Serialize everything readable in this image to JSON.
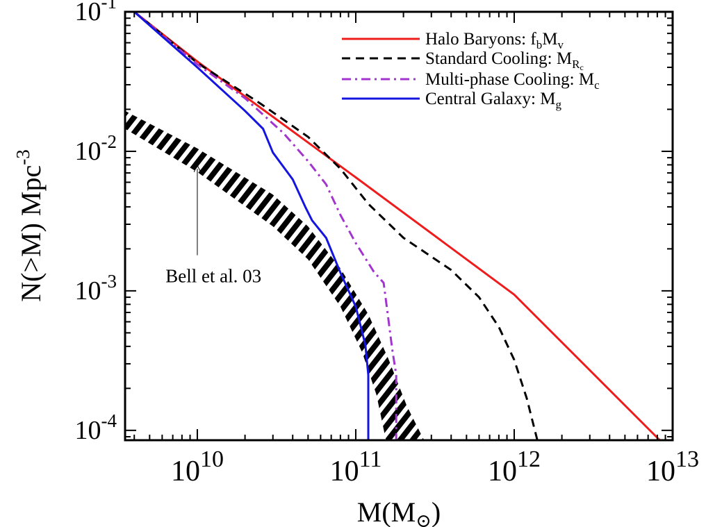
{
  "chart_data": {
    "type": "line",
    "xlabel": "M(M",
    "xlabel_sub": "⊙",
    "xlabel_close": ")",
    "ylabel": "N(>M) Mpc",
    "ylabel_sup": "-3",
    "x_scale": "log",
    "y_scale": "log",
    "xlim": [
      3500000000.0,
      10000000000000.0
    ],
    "ylim": [
      8.5e-05,
      0.1
    ],
    "x_ticks": [
      {
        "base": "10",
        "exp": "10",
        "value": 10000000000.0
      },
      {
        "base": "10",
        "exp": "11",
        "value": 100000000000.0
      },
      {
        "base": "10",
        "exp": "12",
        "value": 1000000000000.0
      },
      {
        "base": "10",
        "exp": "13",
        "value": 10000000000000.0
      }
    ],
    "y_ticks": [
      {
        "base": "10",
        "exp": "-1",
        "value": 0.1
      },
      {
        "base": "10",
        "exp": "-2",
        "value": 0.01
      },
      {
        "base": "10",
        "exp": "-3",
        "value": 0.001
      },
      {
        "base": "10",
        "exp": "-4",
        "value": 0.0001
      }
    ],
    "grid": false,
    "legend_position": "top-right",
    "series": [
      {
        "name": "Halo Baryons: f",
        "name_sub": "b",
        "name_mid": "M",
        "name_sub2": "v",
        "color": "#ee1c1c",
        "dash": "solid",
        "points": [
          [
            4000000000.0,
            0.1
          ],
          [
            10000000000.0,
            0.044
          ],
          [
            100000000000.0,
            0.0065
          ],
          [
            1000000000000.0,
            0.00094
          ],
          [
            8300000000000.0,
            8.5e-05
          ]
        ]
      },
      {
        "name": "Standard Cooling: M",
        "name_sub": "R",
        "name_sub_sub": "c",
        "color": "#000000",
        "dash": "dashed",
        "points": [
          [
            4000000000.0,
            0.1
          ],
          [
            10000000000.0,
            0.043
          ],
          [
            25000000000.0,
            0.022
          ],
          [
            50000000000.0,
            0.0127
          ],
          [
            80000000000.0,
            0.0075
          ],
          [
            120000000000.0,
            0.0042
          ],
          [
            200000000000.0,
            0.0024
          ],
          [
            400000000000.0,
            0.00141
          ],
          [
            600000000000.0,
            0.0009
          ],
          [
            800000000000.0,
            0.00055
          ],
          [
            1000000000000.0,
            0.00032
          ],
          [
            1200000000000.0,
            0.00017
          ],
          [
            1400000000000.0,
            8.5e-05
          ]
        ]
      },
      {
        "name": "Multi-phase Cooling: M",
        "name_sub": "c",
        "color": "#a335cf",
        "dash": "dashdot",
        "points": [
          [
            4000000000.0,
            0.1
          ],
          [
            10000000000.0,
            0.042
          ],
          [
            20000000000.0,
            0.024
          ],
          [
            35000000000.0,
            0.0135
          ],
          [
            50000000000.0,
            0.0085
          ],
          [
            65000000000.0,
            0.0058
          ],
          [
            80000000000.0,
            0.0035
          ],
          [
            100000000000.0,
            0.0022
          ],
          [
            130000000000.0,
            0.00137
          ],
          [
            150000000000.0,
            0.00114
          ],
          [
            160000000000.0,
            0.00065
          ],
          [
            170000000000.0,
            0.00038
          ],
          [
            180000000000.0,
            0.00025
          ],
          [
            180000000000.0,
            8.5e-05
          ]
        ]
      },
      {
        "name": "Central Galaxy: M",
        "name_sub": "g",
        "color": "#1515e0",
        "dash": "solid",
        "points": [
          [
            4000000000.0,
            0.1
          ],
          [
            10000000000.0,
            0.04
          ],
          [
            20000000000.0,
            0.0195
          ],
          [
            26000000000.0,
            0.0145
          ],
          [
            30000000000.0,
            0.0098
          ],
          [
            40000000000.0,
            0.0063
          ],
          [
            48000000000.0,
            0.004
          ],
          [
            53000000000.0,
            0.0032
          ],
          [
            65000000000.0,
            0.0024
          ],
          [
            80000000000.0,
            0.00135
          ],
          [
            100000000000.0,
            0.00077
          ],
          [
            115000000000.0,
            0.00041
          ],
          [
            120000000000.0,
            0.00025
          ],
          [
            120000000000.0,
            8.5e-05
          ]
        ]
      }
    ],
    "band": {
      "name": "Bell et al. 03",
      "upper": [
        [
          3500000000.0,
          0.0195
        ],
        [
          10000000000.0,
          0.0105
        ],
        [
          30000000000.0,
          0.0049
        ],
        [
          50000000000.0,
          0.0029
        ],
        [
          80000000000.0,
          0.00145
        ],
        [
          120000000000.0,
          0.00068
        ],
        [
          160000000000.0,
          0.00033
        ],
        [
          210000000000.0,
          0.00015
        ],
        [
          270000000000.0,
          8.5e-05
        ]
      ],
      "lower": [
        [
          3500000000.0,
          0.0145
        ],
        [
          10000000000.0,
          0.0071
        ],
        [
          30000000000.0,
          0.0029
        ],
        [
          50000000000.0,
          0.00168
        ],
        [
          80000000000.0,
          0.00077
        ],
        [
          110000000000.0,
          0.00036
        ],
        [
          135000000000.0,
          0.00018
        ],
        [
          155000000000.0,
          8.5e-05
        ]
      ]
    },
    "annotation": {
      "text": "Bell et al. 03",
      "arrow_from": [
        10000000000.0,
        0.0018
      ],
      "arrow_to": [
        10000000000.0,
        0.0075
      ],
      "text_at": [
        6300000000.0,
        0.00115
      ]
    }
  }
}
